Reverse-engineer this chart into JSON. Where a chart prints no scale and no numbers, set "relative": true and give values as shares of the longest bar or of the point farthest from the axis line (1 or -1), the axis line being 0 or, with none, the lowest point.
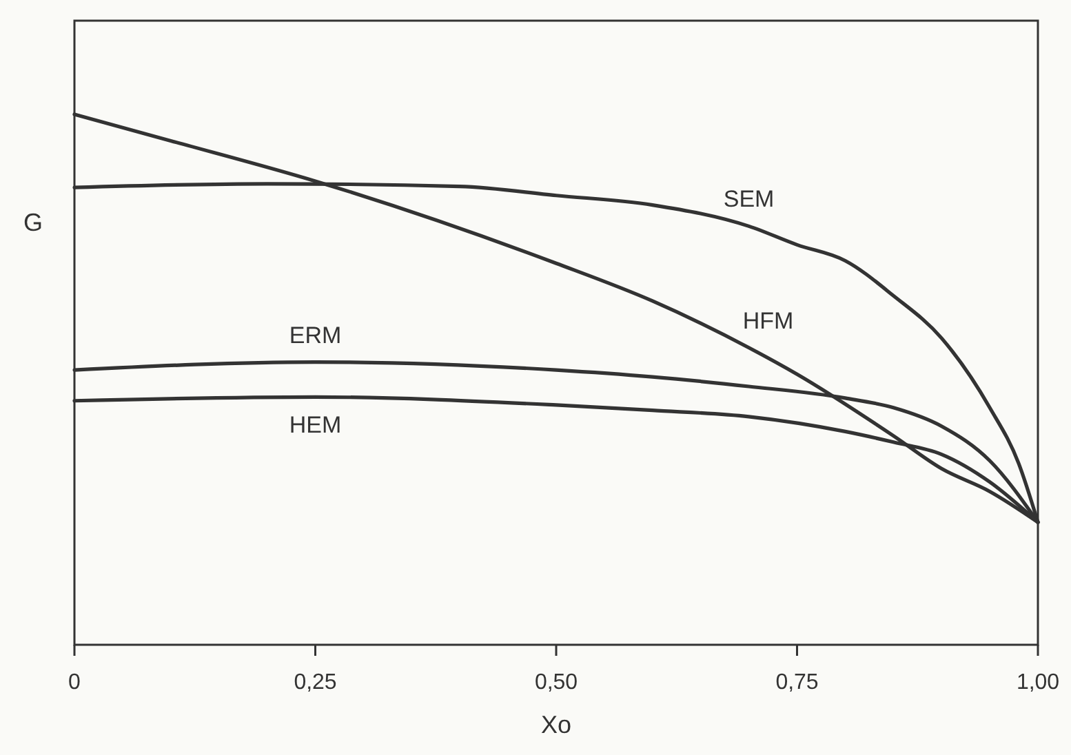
{
  "chart_data": {
    "type": "line",
    "xlabel": "Xo",
    "ylabel": "G",
    "relative": true,
    "tick_labels": "x",
    "marker": "none",
    "line_style": "solid",
    "xlim": [
      0,
      1
    ],
    "xticks": [
      {
        "value": 0,
        "label": "0"
      },
      {
        "value": 0.25,
        "label": "0,25"
      },
      {
        "value": 0.5,
        "label": "0,50"
      },
      {
        "value": 0.75,
        "label": "0,75"
      },
      {
        "value": 1,
        "label": "1,00"
      }
    ],
    "series": [
      {
        "name": "SEM",
        "color": "#333333",
        "x": [
          0,
          0.2,
          0.4,
          0.5,
          0.6,
          0.7,
          0.75,
          0.8,
          0.85,
          0.9,
          0.95,
          0.98,
          1
        ],
        "values": [
          0.862,
          0.869,
          0.864,
          0.847,
          0.829,
          0.789,
          0.754,
          0.724,
          0.658,
          0.578,
          0.447,
          0.342,
          0.231
        ]
      },
      {
        "name": "HFM",
        "color": "#333333",
        "x": [
          0,
          0.1,
          0.25,
          0.5,
          0.6,
          0.7,
          0.75,
          0.85,
          0.9,
          0.95,
          1
        ],
        "values": [
          1.0,
          0.95,
          0.874,
          0.719,
          0.648,
          0.56,
          0.51,
          0.394,
          0.332,
          0.289,
          0.231
        ]
      },
      {
        "name": "ERM",
        "color": "#333333",
        "x": [
          0,
          0.25,
          0.5,
          0.6,
          0.7,
          0.8,
          0.85,
          0.9,
          0.95,
          1
        ],
        "values": [
          0.518,
          0.533,
          0.518,
          0.505,
          0.487,
          0.465,
          0.447,
          0.412,
          0.347,
          0.231
        ]
      },
      {
        "name": "HEM",
        "color": "#333333",
        "x": [
          0,
          0.25,
          0.5,
          0.6,
          0.7,
          0.8,
          0.85,
          0.9,
          0.95,
          1
        ],
        "values": [
          0.46,
          0.467,
          0.452,
          0.442,
          0.43,
          0.402,
          0.382,
          0.359,
          0.307,
          0.231
        ]
      }
    ]
  }
}
